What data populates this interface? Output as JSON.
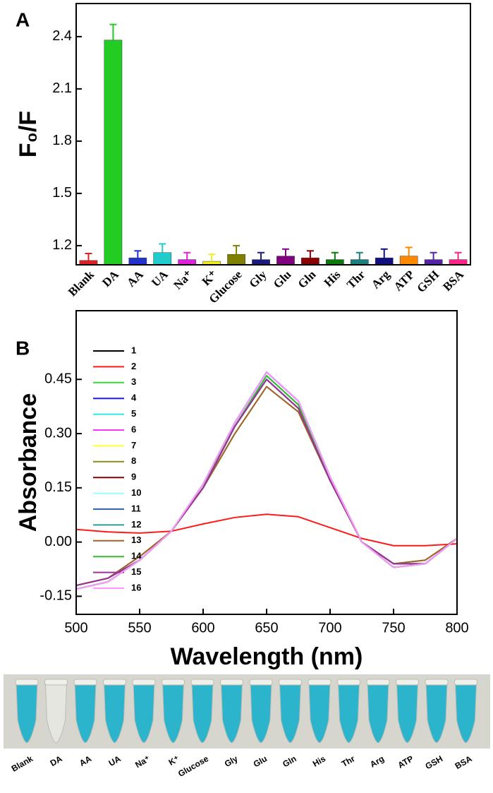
{
  "chart_data": [
    {
      "type": "bar",
      "panel_label": "A",
      "y_label": "F₀/F",
      "categories": [
        "Blank",
        "DA",
        "AA",
        "UA",
        "Na⁺",
        "K⁺",
        "Glucose",
        "Gly",
        "Glu",
        "Gln",
        "His",
        "Thr",
        "Arg",
        "ATP",
        "GSH",
        "BSA"
      ],
      "values": [
        1.115,
        2.38,
        1.13,
        1.16,
        1.12,
        1.11,
        1.15,
        1.12,
        1.14,
        1.13,
        1.12,
        1.12,
        1.13,
        1.14,
        1.12,
        1.12
      ],
      "errors": [
        0.04,
        0.09,
        0.04,
        0.05,
        0.04,
        0.04,
        0.05,
        0.04,
        0.04,
        0.04,
        0.04,
        0.04,
        0.05,
        0.05,
        0.04,
        0.04
      ],
      "colors": [
        "#e02020",
        "#22cc22",
        "#2233cc",
        "#22cccc",
        "#dd22dd",
        "#eeee22",
        "#808000",
        "#1a1a80",
        "#800080",
        "#8b0000",
        "#0a7a0a",
        "#1a8080",
        "#101080",
        "#ff8800",
        "#5522aa",
        "#ff2288"
      ],
      "ylim": [
        1.09,
        2.59
      ],
      "yticks": [
        1.2,
        1.5,
        1.8,
        2.1,
        2.4
      ]
    },
    {
      "type": "line",
      "panel_label": "B",
      "x_label": "Wavelength (nm)",
      "y_label": "Absorbance",
      "x": [
        500,
        525,
        550,
        575,
        600,
        625,
        650,
        675,
        700,
        725,
        750,
        775,
        800
      ],
      "series": [
        {
          "name": "1",
          "color": "#000000",
          "values": [
            -0.13,
            -0.11,
            -0.05,
            0.03,
            0.16,
            0.33,
            0.47,
            0.39,
            0.18,
            0.0,
            -0.07,
            -0.06,
            0.01
          ]
        },
        {
          "name": "2",
          "color": "#ff1a1a",
          "values": [
            0.035,
            0.028,
            0.025,
            0.03,
            0.05,
            0.068,
            0.077,
            0.07,
            0.04,
            0.01,
            -0.01,
            -0.01,
            -0.005
          ]
        },
        {
          "name": "3",
          "color": "#33dd33",
          "values": [
            -0.13,
            -0.11,
            -0.05,
            0.03,
            0.16,
            0.32,
            0.46,
            0.38,
            0.18,
            0.0,
            -0.07,
            -0.06,
            0.01
          ]
        },
        {
          "name": "4",
          "color": "#1a1aff",
          "values": [
            -0.13,
            -0.11,
            -0.05,
            0.03,
            0.16,
            0.33,
            0.47,
            0.39,
            0.18,
            0.0,
            -0.07,
            -0.06,
            0.01
          ]
        },
        {
          "name": "5",
          "color": "#33e6e6",
          "values": [
            -0.12,
            -0.1,
            -0.05,
            0.03,
            0.15,
            0.32,
            0.45,
            0.37,
            0.17,
            0.0,
            -0.06,
            -0.06,
            0.01
          ]
        },
        {
          "name": "6",
          "color": "#ff33ff",
          "values": [
            -0.13,
            -0.11,
            -0.05,
            0.03,
            0.16,
            0.32,
            0.46,
            0.38,
            0.18,
            0.0,
            -0.07,
            -0.06,
            0.01
          ]
        },
        {
          "name": "7",
          "color": "#ffff33",
          "values": [
            -0.12,
            -0.1,
            -0.05,
            0.03,
            0.15,
            0.32,
            0.45,
            0.37,
            0.17,
            0.0,
            -0.06,
            -0.06,
            0.01
          ]
        },
        {
          "name": "8",
          "color": "#8c8c1a",
          "values": [
            -0.12,
            -0.1,
            -0.04,
            0.03,
            0.15,
            0.3,
            0.43,
            0.36,
            0.17,
            0.0,
            -0.06,
            -0.05,
            0.01
          ]
        },
        {
          "name": "9",
          "color": "#8b0000",
          "values": [
            -0.12,
            -0.1,
            -0.05,
            0.03,
            0.15,
            0.32,
            0.45,
            0.37,
            0.17,
            0.0,
            -0.06,
            -0.06,
            0.01
          ]
        },
        {
          "name": "10",
          "color": "#99ffff",
          "values": [
            -0.13,
            -0.11,
            -0.05,
            0.03,
            0.16,
            0.32,
            0.46,
            0.38,
            0.18,
            0.0,
            -0.07,
            -0.06,
            0.01
          ]
        },
        {
          "name": "11",
          "color": "#3366aa",
          "values": [
            -0.13,
            -0.11,
            -0.05,
            0.03,
            0.16,
            0.33,
            0.47,
            0.39,
            0.18,
            0.0,
            -0.07,
            -0.06,
            0.01
          ]
        },
        {
          "name": "12",
          "color": "#339999",
          "values": [
            -0.12,
            -0.1,
            -0.05,
            0.03,
            0.15,
            0.32,
            0.45,
            0.37,
            0.17,
            0.0,
            -0.06,
            -0.06,
            0.01
          ]
        },
        {
          "name": "13",
          "color": "#a0642a",
          "values": [
            -0.12,
            -0.1,
            -0.04,
            0.03,
            0.15,
            0.3,
            0.43,
            0.36,
            0.17,
            0.0,
            -0.06,
            -0.05,
            0.01
          ]
        },
        {
          "name": "14",
          "color": "#33bb33",
          "values": [
            -0.13,
            -0.11,
            -0.05,
            0.03,
            0.16,
            0.32,
            0.46,
            0.38,
            0.18,
            0.0,
            -0.07,
            -0.06,
            0.01
          ]
        },
        {
          "name": "15",
          "color": "#993399",
          "values": [
            -0.12,
            -0.1,
            -0.05,
            0.03,
            0.15,
            0.32,
            0.45,
            0.37,
            0.17,
            0.0,
            -0.06,
            -0.06,
            0.01
          ]
        },
        {
          "name": "16",
          "color": "#ff99ff",
          "values": [
            -0.13,
            -0.11,
            -0.05,
            0.03,
            0.16,
            0.33,
            0.47,
            0.39,
            0.18,
            0.0,
            -0.07,
            -0.06,
            0.01
          ]
        }
      ],
      "xlim": [
        500,
        800
      ],
      "xticks": [
        500,
        550,
        600,
        650,
        700,
        750,
        800
      ],
      "ylim": [
        -0.2,
        0.64
      ],
      "yticks": [
        {
          "value": -0.15,
          "label": "-0.15"
        },
        {
          "value": 0,
          "label": "0.00"
        },
        {
          "value": 0.15,
          "label": "0.15"
        },
        {
          "value": 0.3,
          "label": "0.30"
        },
        {
          "value": 0.45,
          "label": "0.45"
        }
      ]
    }
  ],
  "photo": {
    "labels": [
      "Blank",
      "DA",
      "AA",
      "UA",
      "Na⁺",
      "K⁺",
      "Glucose",
      "Gly",
      "Glu",
      "Gln",
      "His",
      "Thr",
      "Arg",
      "ATP",
      "GSH",
      "BSA"
    ],
    "colors": [
      "#2bb4cc",
      "#e6e6e0",
      "#2bb4cc",
      "#2bb4cc",
      "#2bb4cc",
      "#2bb4cc",
      "#2bb4cc",
      "#2bb4cc",
      "#2bb4cc",
      "#2bb4cc",
      "#2bb4cc",
      "#2bb4cc",
      "#2bb4cc",
      "#2bb4cc",
      "#2bb4cc",
      "#2bb4cc"
    ]
  }
}
